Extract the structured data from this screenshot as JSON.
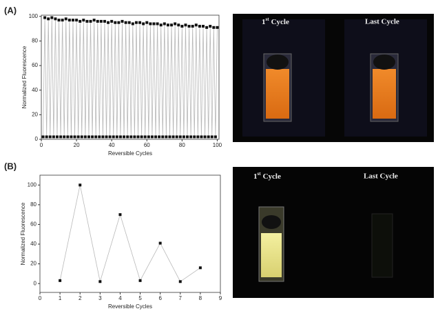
{
  "panels": [
    {
      "label": "(A)"
    },
    {
      "label": "(B)"
    }
  ],
  "photos": [
    {
      "captions": [
        {
          "number": "1",
          "suffix": "st",
          "word": "Cycle"
        },
        {
          "text": "Last Cycle"
        }
      ]
    },
    {
      "captions": [
        {
          "number": "1",
          "suffix": "st",
          "word": "Cycle"
        },
        {
          "text": "Last Cycle"
        }
      ]
    }
  ],
  "chart_data": [
    {
      "type": "line",
      "xlabel": "Reversible Cycles",
      "ylabel": "Normalized Fluorescence",
      "x": [
        1,
        2,
        3,
        4,
        5,
        6,
        7,
        8,
        9,
        10,
        11,
        12,
        13,
        14,
        15,
        16,
        17,
        18,
        19,
        20,
        21,
        22,
        23,
        24,
        25,
        26,
        27,
        28,
        29,
        30,
        31,
        32,
        33,
        34,
        35,
        36,
        37,
        38,
        39,
        40,
        41,
        42,
        43,
        44,
        45,
        46,
        47,
        48,
        49,
        50,
        51,
        52,
        53,
        54,
        55,
        56,
        57,
        58,
        59,
        60,
        61,
        62,
        63,
        64,
        65,
        66,
        67,
        68,
        69,
        70,
        71,
        72,
        73,
        74,
        75,
        76,
        77,
        78,
        79,
        80,
        81,
        82,
        83,
        84,
        85,
        86,
        87,
        88,
        89,
        90,
        91,
        92,
        93,
        94,
        95,
        96,
        97,
        98,
        99,
        100
      ],
      "values": [
        2,
        99,
        2,
        98,
        2,
        99,
        2,
        98,
        2,
        97,
        2,
        97,
        2,
        98,
        2,
        97,
        2,
        97,
        2,
        97,
        2,
        96,
        2,
        97,
        2,
        96,
        2,
        96,
        2,
        97,
        2,
        96,
        2,
        96,
        2,
        96,
        2,
        95,
        2,
        96,
        2,
        95,
        2,
        95,
        2,
        96,
        2,
        95,
        2,
        95,
        2,
        94,
        2,
        95,
        2,
        95,
        2,
        94,
        2,
        95,
        2,
        94,
        2,
        94,
        2,
        94,
        2,
        93,
        2,
        94,
        2,
        93,
        2,
        93,
        2,
        94,
        2,
        93,
        2,
        92,
        2,
        93,
        2,
        92,
        2,
        92,
        2,
        93,
        2,
        92,
        2,
        92,
        2,
        91,
        2,
        92,
        2,
        91,
        2,
        91
      ],
      "color": "#b8b8b8",
      "marker_color": "#111111",
      "xlim": [
        0,
        101
      ],
      "xticks": [
        0,
        20,
        40,
        60,
        80,
        100
      ],
      "ylim": [
        0,
        101
      ],
      "yticks": [
        0,
        20,
        40,
        60,
        80,
        100
      ]
    },
    {
      "type": "line",
      "xlabel": "Reversible Cycles",
      "ylabel": "Normalized Fluorescence",
      "x": [
        1,
        2,
        3,
        4,
        5,
        6,
        7,
        8
      ],
      "values": [
        3,
        100,
        2,
        70,
        3,
        41,
        2,
        16
      ],
      "color": "#b8b8b8",
      "marker_color": "#111111",
      "xlim": [
        0,
        9
      ],
      "xticks": [
        0,
        1,
        2,
        3,
        4,
        5,
        6,
        7,
        8,
        9
      ],
      "ylim": [
        -9,
        110
      ],
      "yticks": [
        0,
        20,
        40,
        60,
        80,
        100
      ]
    }
  ]
}
